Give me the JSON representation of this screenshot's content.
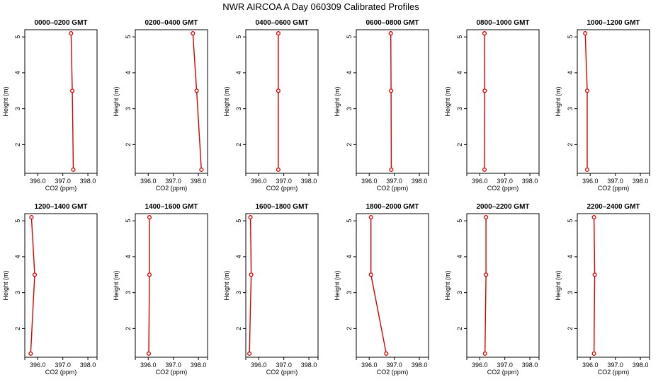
{
  "chart_data": {
    "type": "line",
    "title": "NWR AIRCOA A  Day 060309  Calibrated Profiles",
    "xlabel": "CO2 (ppm)",
    "ylabel": "Height (m)",
    "xlim": [
      395.6,
      398.25
    ],
    "ylim": [
      1.2,
      5.2
    ],
    "xticks": [
      396.0,
      397.0,
      398.0
    ],
    "xtick_labels": [
      "396.0",
      "397.0",
      "398.0"
    ],
    "yticks": [
      2,
      3,
      4,
      5
    ],
    "ytick_labels": [
      "2",
      "3",
      "4",
      "5"
    ],
    "series_color": "#dd0000",
    "heights": [
      1.3,
      3.5,
      5.1
    ],
    "panels": [
      {
        "title": "0000–0200 GMT",
        "values": [
          397.42,
          397.38,
          397.33
        ]
      },
      {
        "title": "0200–0400 GMT",
        "values": [
          398.12,
          397.93,
          397.78
        ]
      },
      {
        "title": "0400–0600 GMT",
        "values": [
          396.78,
          396.78,
          396.78
        ]
      },
      {
        "title": "0600–0800 GMT",
        "values": [
          396.88,
          396.87,
          396.86
        ]
      },
      {
        "title": "0800–1000 GMT",
        "values": [
          396.19,
          396.2,
          396.19
        ]
      },
      {
        "title": "1000–1200 GMT",
        "values": [
          395.88,
          395.88,
          395.8
        ]
      },
      {
        "title": "1200–1400 GMT",
        "values": [
          395.72,
          395.88,
          395.75
        ]
      },
      {
        "title": "1400–1600 GMT",
        "values": [
          396.02,
          396.05,
          396.05
        ]
      },
      {
        "title": "1600–1800 GMT",
        "values": [
          395.63,
          395.7,
          395.67
        ]
      },
      {
        "title": "1800–2000 GMT",
        "values": [
          396.68,
          396.07,
          396.07
        ]
      },
      {
        "title": "2000–2200 GMT",
        "values": [
          396.21,
          396.25,
          396.25
        ]
      },
      {
        "title": "2200–2400 GMT",
        "values": [
          396.15,
          396.18,
          396.15
        ]
      }
    ]
  }
}
